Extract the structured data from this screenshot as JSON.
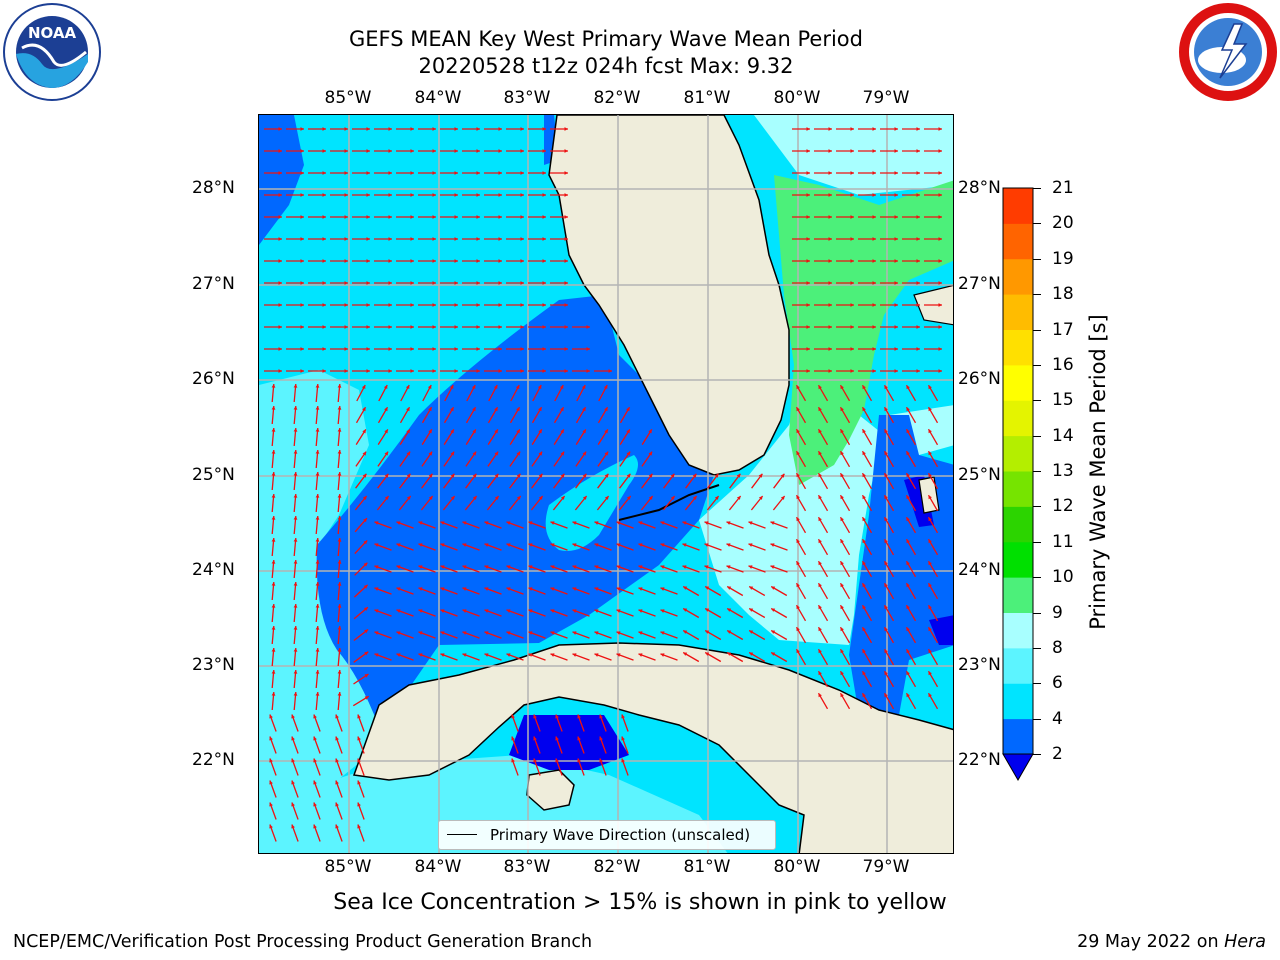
{
  "title": {
    "line1": "GEFS MEAN Key West Primary Wave Mean Period",
    "line2": "20220528 t12z 024h fcst   Max: 9.32"
  },
  "longitude_labels": [
    "85°W",
    "84°W",
    "83°W",
    "82°W",
    "81°W",
    "80°W",
    "79°W"
  ],
  "latitude_labels": [
    "28°N",
    "27°N",
    "26°N",
    "25°N",
    "24°N",
    "23°N",
    "22°N"
  ],
  "legend": {
    "label": "Primary Wave Direction (unscaled)"
  },
  "colorbar": {
    "label": "Primary Wave Mean Period [s]",
    "ticks": [
      "2",
      "4",
      "6",
      "8",
      "9",
      "10",
      "11",
      "12",
      "13",
      "14",
      "15",
      "16",
      "17",
      "18",
      "19",
      "20",
      "21"
    ],
    "levels": [
      2,
      4,
      6,
      8,
      9,
      10,
      11,
      12,
      13,
      14,
      15,
      16,
      17,
      18,
      19,
      20,
      21
    ],
    "colors": [
      "#0068ff",
      "#00e4ff",
      "#5cf4ff",
      "#a8ffff",
      "#4cf07a",
      "#00e000",
      "#2cd400",
      "#76e400",
      "#b4ee00",
      "#e4f400",
      "#ffff00",
      "#ffe000",
      "#ffbc00",
      "#ff9800",
      "#ff6400",
      "#ff3c00",
      "#ff0000"
    ],
    "under_color": "#0000ee"
  },
  "map": {
    "extent": {
      "lon_min": -86.0,
      "lon_max": -78.25,
      "lat_min": 21.0,
      "lat_max": 28.75
    },
    "colors": {
      "land": "#efeddb",
      "coast": "#000000",
      "grid": "#b4b4b4",
      "arrow": "#ee1111",
      "period_below_2": "#0000ee",
      "period_2_4": "#0068ff",
      "period_4_6": "#00e4ff",
      "period_6_8": "#5cf4ff",
      "period_8_9": "#a8ffff",
      "period_9_10": "#4cf07a"
    }
  },
  "ice_note": "Sea Ice Concentration > 15% is shown in pink to yellow",
  "footer": {
    "left": "NCEP/EMC/Verification Post Processing Product Generation Branch",
    "right_date": "29 May 2022 on",
    "right_host": "Hera"
  },
  "logos": {
    "noaa": "NOAA",
    "nws": "NATIONAL WEATHER SERVICE"
  }
}
